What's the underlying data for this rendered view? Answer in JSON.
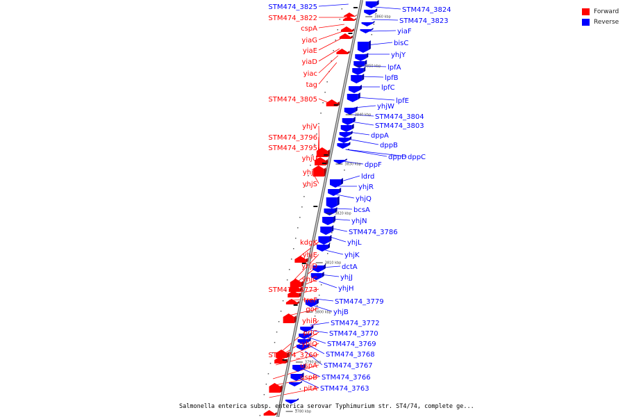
{
  "legend": {
    "forward_label": "Forward",
    "reverse_label": "Reverse",
    "forward_color": "#ff0000",
    "reverse_color": "#0000ff"
  },
  "caption": "Salmonella enterica subsp. enterica serovar Typhimurium str. ST4/74, complete ge...",
  "ticks": [
    "3860 kbp",
    "3850 kbp",
    "3840 kbp",
    "3830 kbp",
    "3820 kbp",
    "3810 kbp",
    "3800 kbp",
    "3790 kbp",
    "3780 kbp"
  ],
  "forward_genes": [
    "STM474_3825",
    "STM474_3822",
    "cspA",
    "yiaG",
    "yiaE",
    "yiaD",
    "yiac",
    "tag",
    "STM474_3805",
    "yhjV",
    "STM474_3796",
    "STM474_3795",
    "yhjU",
    "yhjT",
    "yhjS",
    "kdgK",
    "yhjE",
    "yhjD",
    "yhjC",
    "STM474_3773",
    "treF",
    "gor",
    "yhiR",
    "prlC",
    "yhiQ",
    "STM474_3760",
    "uspA",
    "uspB",
    "pitA"
  ],
  "reverse_genes": [
    "STM474_3824",
    "STM474_3823",
    "yiaF",
    "bisC",
    "yhjY",
    "lpfA",
    "lpfB",
    "lpfC",
    "lpfE",
    "yhjW",
    "STM474_3804",
    "STM474_3803",
    "dppA",
    "dppB",
    "dppD",
    "dppC",
    "dppF",
    "ldrd",
    "yhjR",
    "yhjQ",
    "bcsA",
    "yhjN",
    "STM474_3786",
    "yhjL",
    "yhjK",
    "dctA",
    "yhjJ",
    "yhjH",
    "STM474_3779",
    "yhjB",
    "STM474_3772",
    "STM474_3770",
    "STM474_3769",
    "STM474_3768",
    "STM474_3767",
    "STM474_3766",
    "STM474_3763"
  ]
}
